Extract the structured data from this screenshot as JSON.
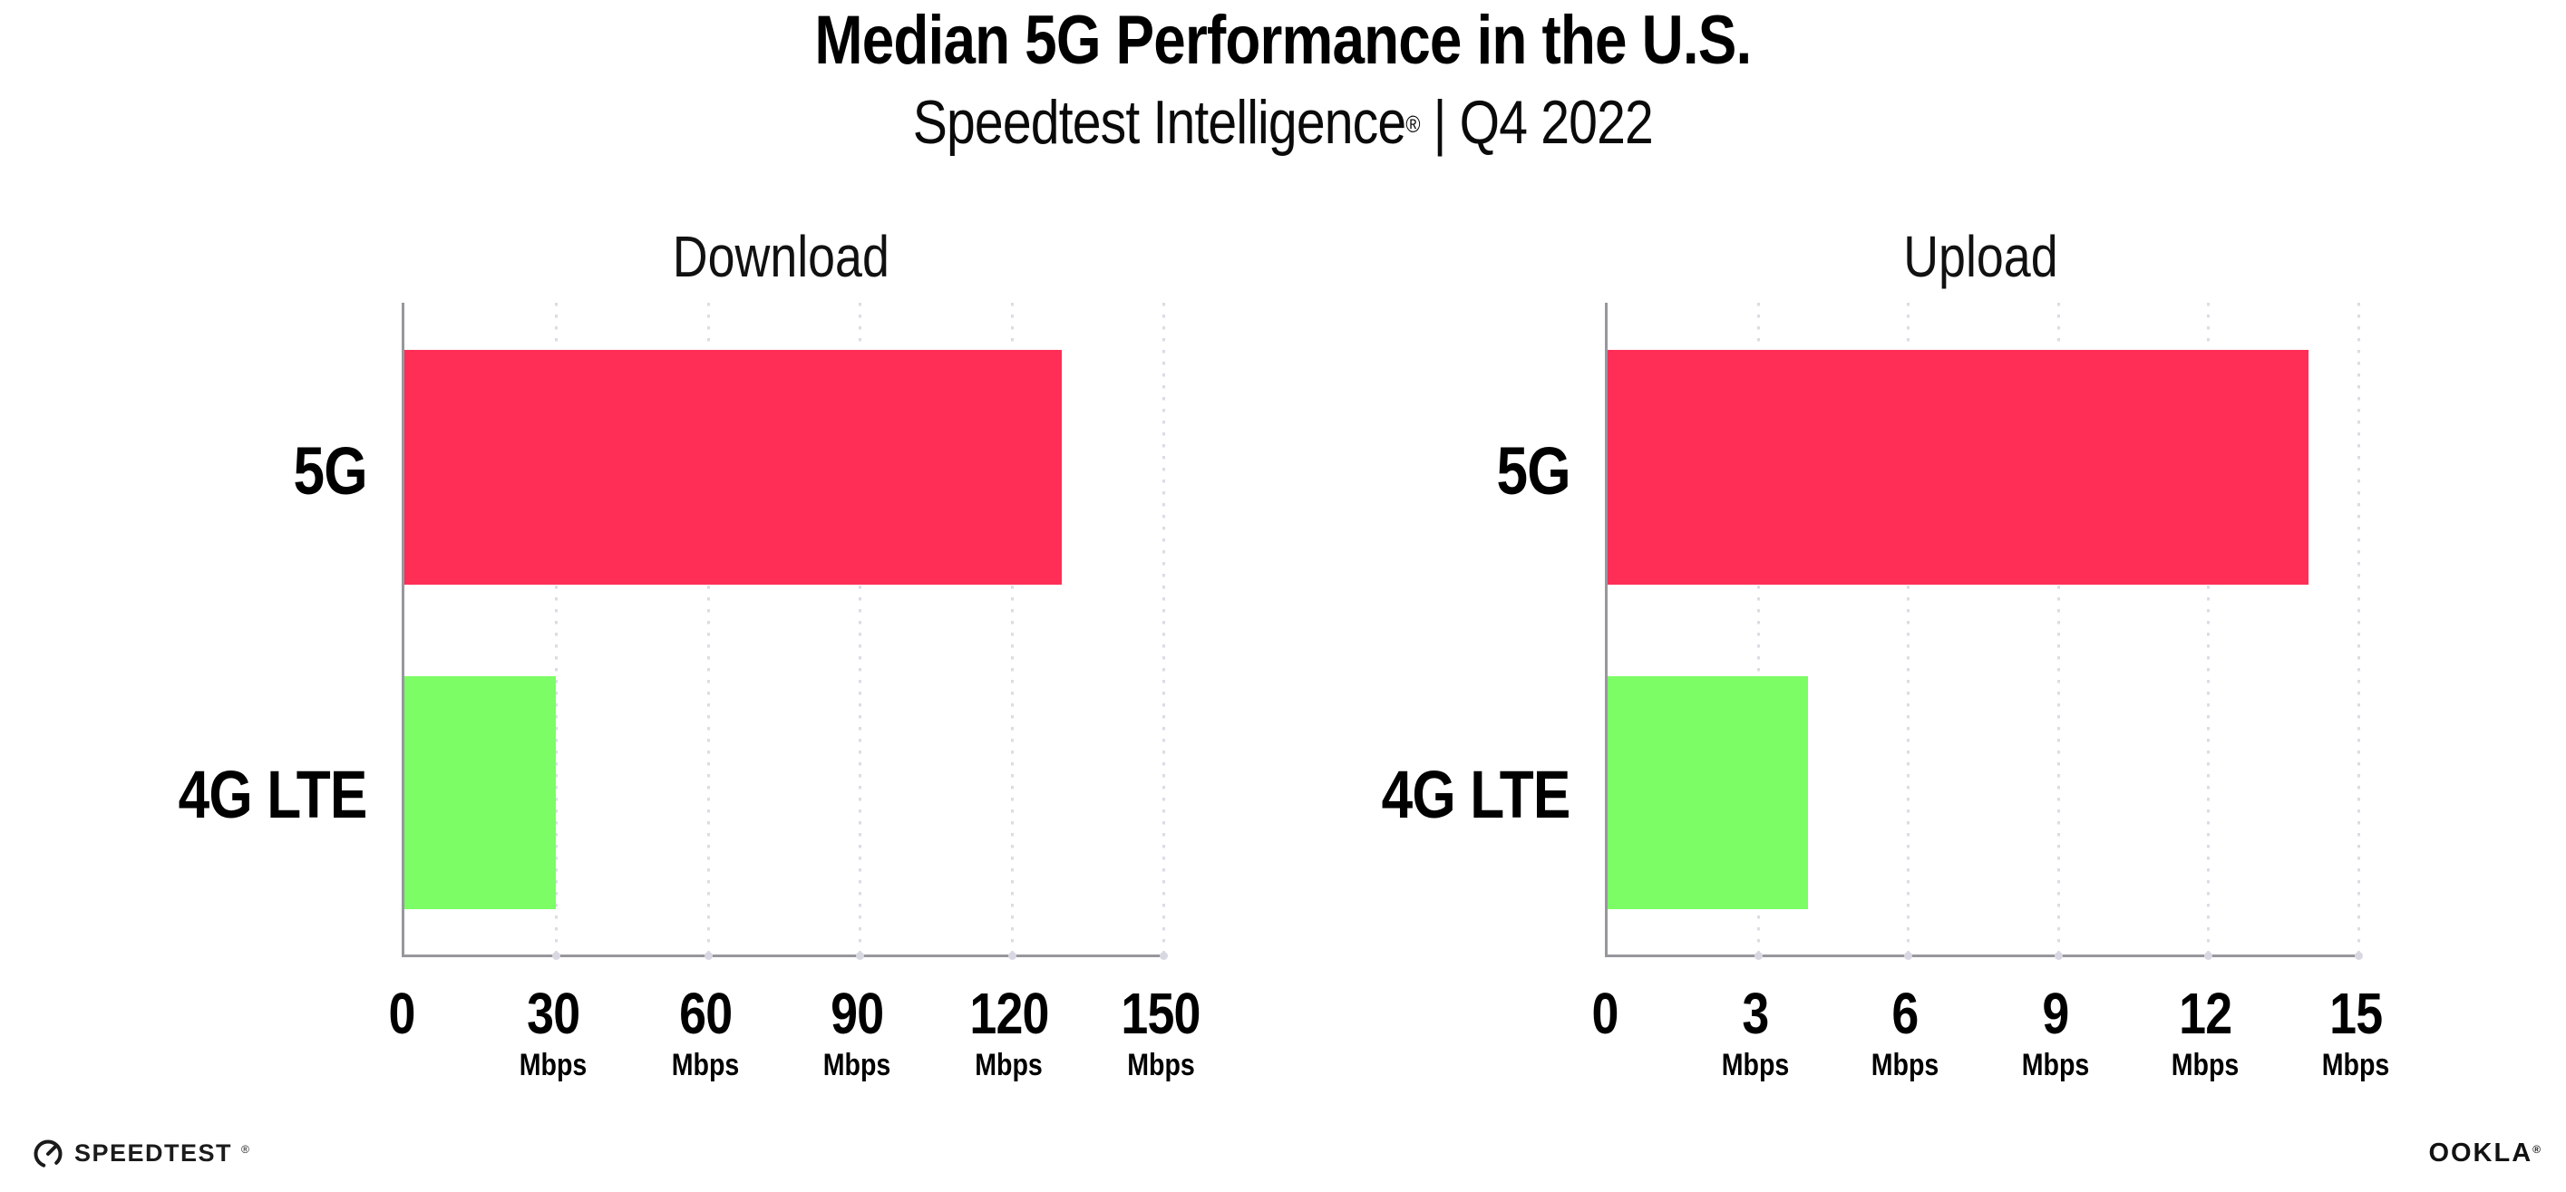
{
  "header": {
    "title": "Median 5G Performance in the U.S.",
    "subtitle_brand": "Speedtest Intelligence",
    "subtitle_reg": "®",
    "subtitle_rest": "| Q4 2022"
  },
  "colors": {
    "bar_5g": "#FF2E56",
    "bar_4g_lte": "#7CFD65",
    "axis": "#97979D",
    "gridline": "#DCDCE6",
    "text": "#000000"
  },
  "chart_data": [
    {
      "type": "bar",
      "orientation": "horizontal",
      "title": "Download",
      "categories": [
        "5G",
        "4G LTE"
      ],
      "values": [
        130,
        30
      ],
      "unit": "Mbps",
      "xlim": [
        0,
        150
      ],
      "xticks": [
        0,
        30,
        60,
        90,
        120,
        150
      ],
      "tick_labels": [
        {
          "value": "0",
          "unit": ""
        },
        {
          "value": "30",
          "unit": "Mbps"
        },
        {
          "value": "60",
          "unit": "Mbps"
        },
        {
          "value": "90",
          "unit": "Mbps"
        },
        {
          "value": "120",
          "unit": "Mbps"
        },
        {
          "value": "150",
          "unit": "Mbps"
        }
      ],
      "series_colors": [
        "#FF2E56",
        "#7CFD65"
      ],
      "grid": "dotted-vertical",
      "legend": "none"
    },
    {
      "type": "bar",
      "orientation": "horizontal",
      "title": "Upload",
      "categories": [
        "5G",
        "4G LTE"
      ],
      "values": [
        14,
        4
      ],
      "unit": "Mbps",
      "xlim": [
        0,
        15
      ],
      "xticks": [
        0,
        3,
        6,
        9,
        12,
        15
      ],
      "tick_labels": [
        {
          "value": "0",
          "unit": ""
        },
        {
          "value": "3",
          "unit": "Mbps"
        },
        {
          "value": "6",
          "unit": "Mbps"
        },
        {
          "value": "9",
          "unit": "Mbps"
        },
        {
          "value": "12",
          "unit": "Mbps"
        },
        {
          "value": "15",
          "unit": "Mbps"
        }
      ],
      "series_colors": [
        "#FF2E56",
        "#7CFD65"
      ],
      "grid": "dotted-vertical",
      "legend": "none"
    }
  ],
  "footer": {
    "speedtest_label": "SPEEDTEST",
    "speedtest_reg": "®",
    "ookla_label": "OOKLA",
    "ookla_reg": "®"
  }
}
